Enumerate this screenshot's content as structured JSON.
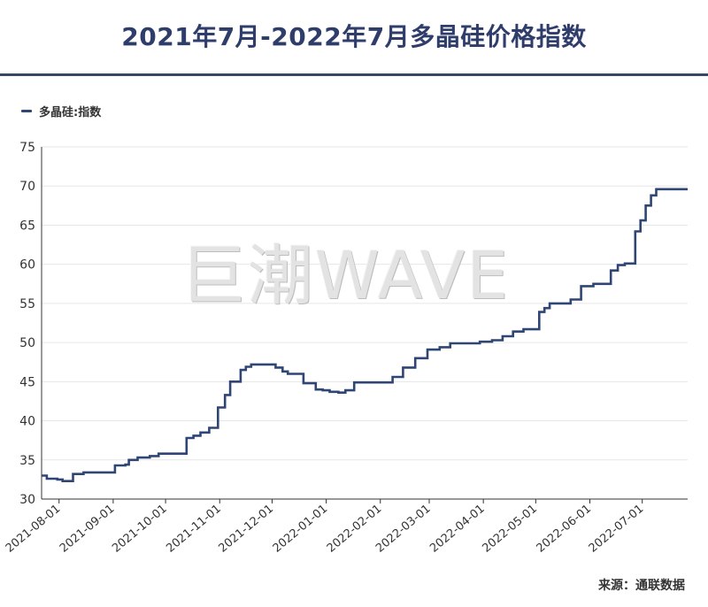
{
  "header": {
    "title": "2021年7月-2022年7月多晶硅价格指数"
  },
  "footer": {
    "source": "来源：通联数据"
  },
  "watermark": {
    "text": "巨潮WAVE"
  },
  "colors": {
    "series": "#2f4574",
    "title": "#2f3d6b",
    "grid": "#e6e6e6"
  },
  "chart_data": {
    "type": "line",
    "step": true,
    "title": "2021年7月-2022年7月多晶硅价格指数",
    "xlabel": "",
    "ylabel": "",
    "ylim": [
      30,
      75
    ],
    "yticks": [
      30,
      35,
      40,
      45,
      50,
      55,
      60,
      65,
      70,
      75
    ],
    "xlim": [
      "2021-07-22",
      "2022-07-27"
    ],
    "xticks": [
      "2021-08-01",
      "2021-09-01",
      "2021-10-01",
      "2021-11-01",
      "2021-12-01",
      "2022-01-01",
      "2022-02-01",
      "2022-03-01",
      "2022-04-01",
      "2022-05-01",
      "2022-06-01",
      "2022-07-01"
    ],
    "grid": true,
    "legend_position": "top-left",
    "series": [
      {
        "name": "多晶硅:指数",
        "points": [
          [
            "2021-07-22",
            33.0
          ],
          [
            "2021-07-25",
            32.6
          ],
          [
            "2021-07-31",
            32.5
          ],
          [
            "2021-08-03",
            32.3
          ],
          [
            "2021-08-09",
            33.2
          ],
          [
            "2021-08-15",
            33.4
          ],
          [
            "2021-09-02",
            34.3
          ],
          [
            "2021-09-08",
            34.4
          ],
          [
            "2021-09-10",
            35.0
          ],
          [
            "2021-09-15",
            35.3
          ],
          [
            "2021-09-22",
            35.5
          ],
          [
            "2021-09-27",
            35.8
          ],
          [
            "2021-10-13",
            37.8
          ],
          [
            "2021-10-17",
            38.1
          ],
          [
            "2021-10-21",
            38.5
          ],
          [
            "2021-10-26",
            39.1
          ],
          [
            "2021-10-31",
            41.7
          ],
          [
            "2021-11-04",
            43.3
          ],
          [
            "2021-11-07",
            45.0
          ],
          [
            "2021-11-13",
            46.5
          ],
          [
            "2021-11-16",
            46.9
          ],
          [
            "2021-11-19",
            47.2
          ],
          [
            "2021-12-03",
            46.8
          ],
          [
            "2021-12-07",
            46.3
          ],
          [
            "2021-12-10",
            46.0
          ],
          [
            "2021-12-19",
            44.8
          ],
          [
            "2021-12-26",
            44.0
          ],
          [
            "2021-12-30",
            43.9
          ],
          [
            "2022-01-03",
            43.7
          ],
          [
            "2022-01-08",
            43.6
          ],
          [
            "2022-01-12",
            43.9
          ],
          [
            "2022-01-17",
            44.9
          ],
          [
            "2022-02-08",
            45.6
          ],
          [
            "2022-02-14",
            46.8
          ],
          [
            "2022-02-21",
            48.0
          ],
          [
            "2022-02-28",
            49.1
          ],
          [
            "2022-03-07",
            49.4
          ],
          [
            "2022-03-13",
            49.9
          ],
          [
            "2022-03-30",
            50.1
          ],
          [
            "2022-04-06",
            50.3
          ],
          [
            "2022-04-12",
            50.8
          ],
          [
            "2022-04-18",
            51.4
          ],
          [
            "2022-04-24",
            51.7
          ],
          [
            "2022-05-03",
            53.9
          ],
          [
            "2022-05-06",
            54.4
          ],
          [
            "2022-05-09",
            55.0
          ],
          [
            "2022-05-21",
            55.5
          ],
          [
            "2022-05-27",
            57.2
          ],
          [
            "2022-06-03",
            57.5
          ],
          [
            "2022-06-13",
            59.2
          ],
          [
            "2022-06-17",
            59.9
          ],
          [
            "2022-06-21",
            60.1
          ],
          [
            "2022-06-27",
            64.2
          ],
          [
            "2022-06-30",
            65.6
          ],
          [
            "2022-07-03",
            67.5
          ],
          [
            "2022-07-06",
            68.8
          ],
          [
            "2022-07-09",
            69.6
          ],
          [
            "2022-07-27",
            69.6
          ]
        ]
      }
    ]
  }
}
